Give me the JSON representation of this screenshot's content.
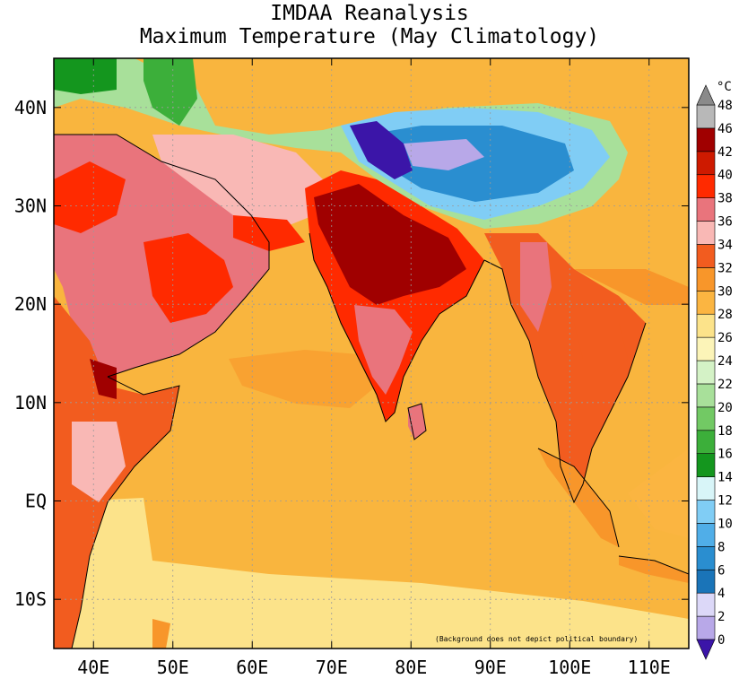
{
  "title": {
    "line1": "IMDAA Reanalysis",
    "line2": "Maximum Temperature (May Climatology)"
  },
  "axes": {
    "lat_labels": [
      "40N",
      "30N",
      "20N",
      "10N",
      "EQ",
      "10S"
    ],
    "lat_values": [
      40,
      30,
      20,
      10,
      0,
      -10
    ],
    "lon_labels": [
      "40E",
      "50E",
      "60E",
      "70E",
      "80E",
      "90E",
      "100E",
      "110E"
    ],
    "lon_values": [
      40,
      50,
      60,
      70,
      80,
      90,
      100,
      110
    ],
    "lat_range": [
      -15,
      45
    ],
    "lon_range": [
      35,
      115
    ]
  },
  "colorbar": {
    "unit": "°C",
    "ticks": [
      0,
      2,
      4,
      6,
      8,
      10,
      12,
      14,
      16,
      18,
      20,
      22,
      24,
      26,
      28,
      30,
      32,
      34,
      36,
      38,
      40,
      42,
      46,
      48
    ],
    "tick_labels": [
      "0",
      "2",
      "4",
      "6",
      "8",
      "10",
      "12",
      "14",
      "16",
      "18",
      "20",
      "22",
      "24",
      "26",
      "28",
      "30",
      "32",
      "34",
      "36",
      "38",
      "40",
      "42",
      "46",
      "48"
    ],
    "colors": [
      "#b8a8e8",
      "#dcd8f8",
      "#1a74b8",
      "#2a8ed0",
      "#50aee8",
      "#80cdf5",
      "#d8f5f8",
      "#14961e",
      "#3caf3a",
      "#72c964",
      "#a8e09a",
      "#d4f2c6",
      "#fcf4b8",
      "#fce38a",
      "#fbb541",
      "#f8962a",
      "#f25c1f",
      "#f9b8b5",
      "#e9747c",
      "#ff2a00",
      "#ce1a00",
      "#a00000",
      "#b8b8b8"
    ],
    "under_color": "#3b15a8",
    "over_color": "#8a8a8a"
  },
  "footnote": "(Background does not depict political boundary)",
  "map": {
    "background_color": "#f9b53e",
    "regions": [
      {
        "name": "north-india-hot",
        "color": "#a00000"
      },
      {
        "name": "central-india",
        "color": "#ff2a00"
      },
      {
        "name": "arabia-hot",
        "color": "#ff2a00"
      },
      {
        "name": "tibet-cold",
        "color": "#50aee8"
      },
      {
        "name": "tibet-core",
        "color": "#3b15a8"
      },
      {
        "name": "caspian-green",
        "color": "#14961e"
      }
    ]
  }
}
